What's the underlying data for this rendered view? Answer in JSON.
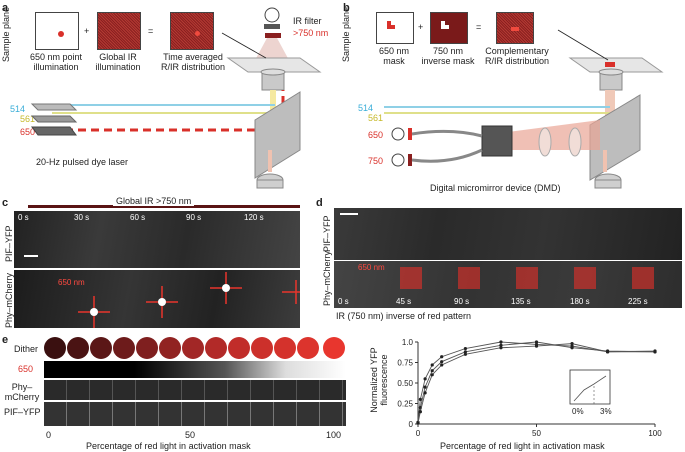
{
  "panel_letters": {
    "a": "a",
    "b": "b",
    "c": "c",
    "d": "d",
    "e": "e"
  },
  "panel_a": {
    "sample_plane": "Sample plane",
    "box1": "650 nm point\nillumination",
    "box2": "Global IR\nillumination",
    "box3": "Time averaged\nR/IR distribution",
    "plus": "+",
    "equals": "=",
    "ir_filter": "IR filter",
    "ir_filter_value": ">750 nm",
    "wl_514": "514",
    "wl_561": "561",
    "wl_650": "650",
    "laser": "20-Hz pulsed dye laser"
  },
  "panel_b": {
    "sample_plane": "Sample plane",
    "box1": "650 nm\nmask",
    "box2": "750 nm\ninverse mask",
    "box3": "Complementary\nR/IR distribution",
    "plus": "+",
    "equals": "=",
    "wl_514": "514",
    "wl_561": "561",
    "wl_650": "650",
    "wl_750": "750",
    "dmd": "Digital micromirror device (DMD)"
  },
  "panel_c": {
    "header": "Global IR  >750 nm",
    "times": [
      "0 s",
      "30 s",
      "60 s",
      "90 s",
      "120 s"
    ],
    "row1": "PIF–YFP",
    "row2": "Phy–mCherry",
    "red_label": "650 nm"
  },
  "panel_d": {
    "times": [
      "0 s",
      "45 s",
      "90 s",
      "135 s",
      "180 s",
      "225 s"
    ],
    "row1": "PIF–YFP",
    "row2": "Phy–mCherry",
    "red_label": "650 nm",
    "caption": "IR (750 nm) inverse of red pattern"
  },
  "panel_e": {
    "rows": [
      "Dither",
      "650",
      "Phy–\nmCherry",
      "PIF–YFP"
    ],
    "x_ticks": [
      "0",
      "50",
      "100"
    ],
    "xlabel": "Percentage of red light in activation mask"
  },
  "colors": {
    "red": "#d9302a",
    "cyan": "#3aaed8",
    "yellow": "#d8d266",
    "dark_red": "#7a1d1d"
  },
  "chart_data": {
    "type": "line",
    "xlabel": "Percentage of red light in activation mask",
    "ylabel": "Normalized YFP fluorescence",
    "xlim": [
      0,
      100
    ],
    "ylim": [
      0,
      1.0
    ],
    "x_ticks": [
      "0",
      "50",
      "100"
    ],
    "y_ticks": [
      "0",
      "0.25",
      "0.50",
      "0.75",
      "1.0"
    ],
    "series": [
      {
        "x": [
          0,
          1,
          3,
          6,
          10,
          20,
          35,
          50,
          65,
          80,
          100
        ],
        "values": [
          0.02,
          0.3,
          0.55,
          0.72,
          0.82,
          0.92,
          1.0,
          0.97,
          0.95,
          0.88,
          0.88
        ]
      },
      {
        "x": [
          0,
          1,
          3,
          6,
          10,
          20,
          35,
          50,
          65,
          80,
          100
        ],
        "values": [
          0.02,
          0.2,
          0.45,
          0.65,
          0.76,
          0.88,
          0.96,
          1.0,
          0.93,
          0.89,
          0.88
        ]
      },
      {
        "x": [
          0,
          1,
          3,
          6,
          10,
          20,
          35,
          50,
          65,
          80,
          100
        ],
        "values": [
          0.01,
          0.15,
          0.38,
          0.6,
          0.72,
          0.85,
          0.93,
          0.95,
          0.98,
          0.88,
          0.89
        ]
      }
    ],
    "inset": {
      "x_ticks": [
        "0%",
        "3%"
      ]
    }
  }
}
